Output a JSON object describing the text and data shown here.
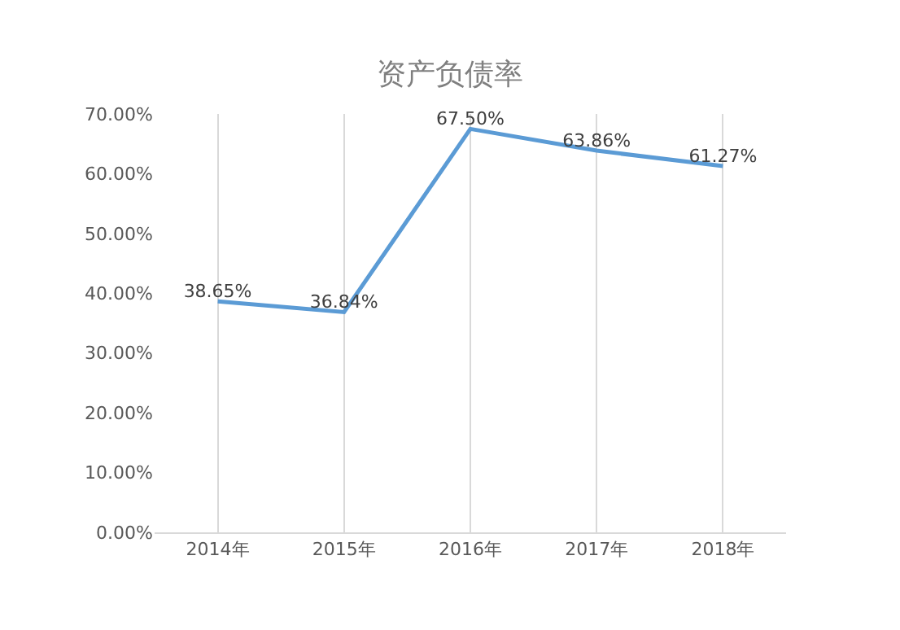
{
  "chart_data": {
    "type": "line",
    "title": "资产负债率",
    "categories": [
      "2014年",
      "2015年",
      "2016年",
      "2017年",
      "2018年"
    ],
    "series": [
      {
        "color": "#5b9bd5",
        "values": [
          38.65,
          36.84,
          67.5,
          63.86,
          61.27
        ],
        "value_labels": [
          "38.65%",
          "36.84%",
          "67.50%",
          "63.86%",
          "61.27%"
        ]
      }
    ],
    "ylim": [
      0,
      70
    ],
    "yticks": [
      {
        "value": 0,
        "label": "0.00%"
      },
      {
        "value": 10,
        "label": "10.00%"
      },
      {
        "value": 20,
        "label": "20.00%"
      },
      {
        "value": 30,
        "label": "30.00%"
      },
      {
        "value": 40,
        "label": "40.00%"
      },
      {
        "value": 50,
        "label": "50.00%"
      },
      {
        "value": 60,
        "label": "60.00%"
      },
      {
        "value": 70,
        "label": "70.00%"
      }
    ],
    "grid": "x",
    "marker": "none",
    "line_style": "solid"
  }
}
